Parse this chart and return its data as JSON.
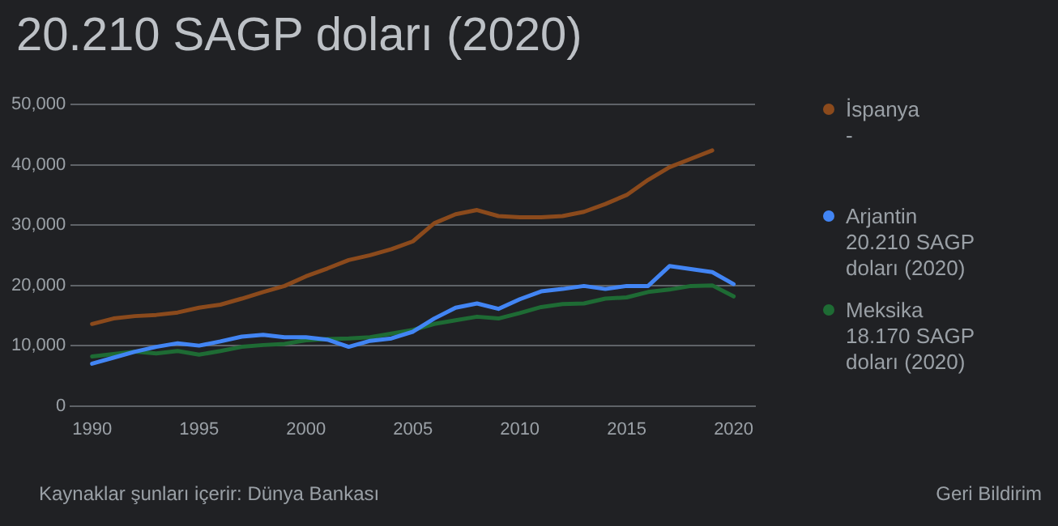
{
  "chart_data": {
    "type": "line",
    "title": "20.210 SAGP doları (2020)",
    "x": [
      1990,
      1991,
      1992,
      1993,
      1994,
      1995,
      1996,
      1997,
      1998,
      1999,
      2000,
      2001,
      2002,
      2003,
      2004,
      2005,
      2006,
      2007,
      2008,
      2009,
      2010,
      2011,
      2012,
      2013,
      2014,
      2015,
      2016,
      2017,
      2018,
      2019,
      2020
    ],
    "series": [
      {
        "name": "İspanya",
        "color": "#8b4a1c",
        "values": [
          13600,
          14500,
          14900,
          15100,
          15500,
          16300,
          16800,
          17800,
          18900,
          19900,
          21500,
          22800,
          24200,
          25000,
          26000,
          27300,
          30300,
          31800,
          32500,
          31500,
          31300,
          31300,
          31500,
          32200,
          33500,
          35000,
          37500,
          39600,
          41000,
          42400,
          null
        ]
      },
      {
        "name": "Arjantin",
        "color": "#4285f4",
        "values": [
          7000,
          8000,
          9000,
          9800,
          10400,
          10000,
          10700,
          11500,
          11800,
          11400,
          11400,
          11000,
          9800,
          10800,
          11200,
          12300,
          14500,
          16300,
          17000,
          16100,
          17700,
          19000,
          19400,
          19900,
          19400,
          19900,
          19900,
          23200,
          22700,
          22200,
          20210
        ]
      },
      {
        "name": "Meksika",
        "color": "#1e6b34",
        "values": [
          8200,
          8600,
          9000,
          8700,
          9100,
          8500,
          9100,
          9800,
          10100,
          10300,
          10900,
          11100,
          11200,
          11400,
          12000,
          12600,
          13600,
          14200,
          14800,
          14500,
          15400,
          16400,
          16900,
          17000,
          17800,
          18000,
          18900,
          19300,
          19900,
          20000,
          18170
        ]
      }
    ],
    "annotations": [
      "-",
      "20.210 SAGP doları (2020)",
      "18.170 SAGP doları (2020)",
      "Kaynaklar şunları içerir: Dünya Bankası",
      "Geri Bildirim"
    ],
    "xlim": [
      1989,
      2021
    ],
    "xticks": [
      1990,
      1995,
      2000,
      2005,
      2010,
      2015,
      2020
    ],
    "ylim": [
      0,
      50000
    ],
    "yticks": [
      0,
      {
        "value": 10000,
        "label": "10,000"
      },
      {
        "value": 20000,
        "label": "20,000"
      },
      {
        "value": 30000,
        "label": "30,000"
      },
      {
        "value": 40000,
        "label": "40,000"
      },
      {
        "value": 50000,
        "label": "50,000"
      }
    ],
    "grid": "y",
    "legend": "right"
  }
}
